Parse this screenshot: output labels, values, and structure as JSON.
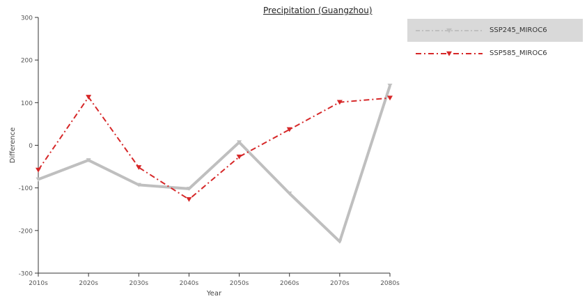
{
  "chart_data": {
    "type": "line",
    "title": "Precipitation (Guangzhou)",
    "xlabel": "Year",
    "ylabel": "Difference",
    "categories": [
      "2010s",
      "2020s",
      "2030s",
      "2040s",
      "2050s",
      "2060s",
      "2070s",
      "2080s"
    ],
    "ylim": [
      -300,
      300
    ],
    "yticks": [
      -300,
      -200,
      -100,
      0,
      100,
      200,
      300
    ],
    "grid": false,
    "legend_position": "top-right",
    "series": [
      {
        "name": "SSP245_MIROC6",
        "values": [
          -80,
          -35,
          -93,
          -102,
          7,
          -113,
          -226,
          140
        ],
        "color": "#bfbfbf",
        "marker": "triangle-down",
        "legend_active": true
      },
      {
        "name": "SSP585_MIROC6",
        "values": [
          -58,
          113,
          -52,
          -127,
          -27,
          37,
          101,
          111
        ],
        "color": "#d62728",
        "marker": "triangle-down",
        "legend_active": false
      }
    ]
  }
}
